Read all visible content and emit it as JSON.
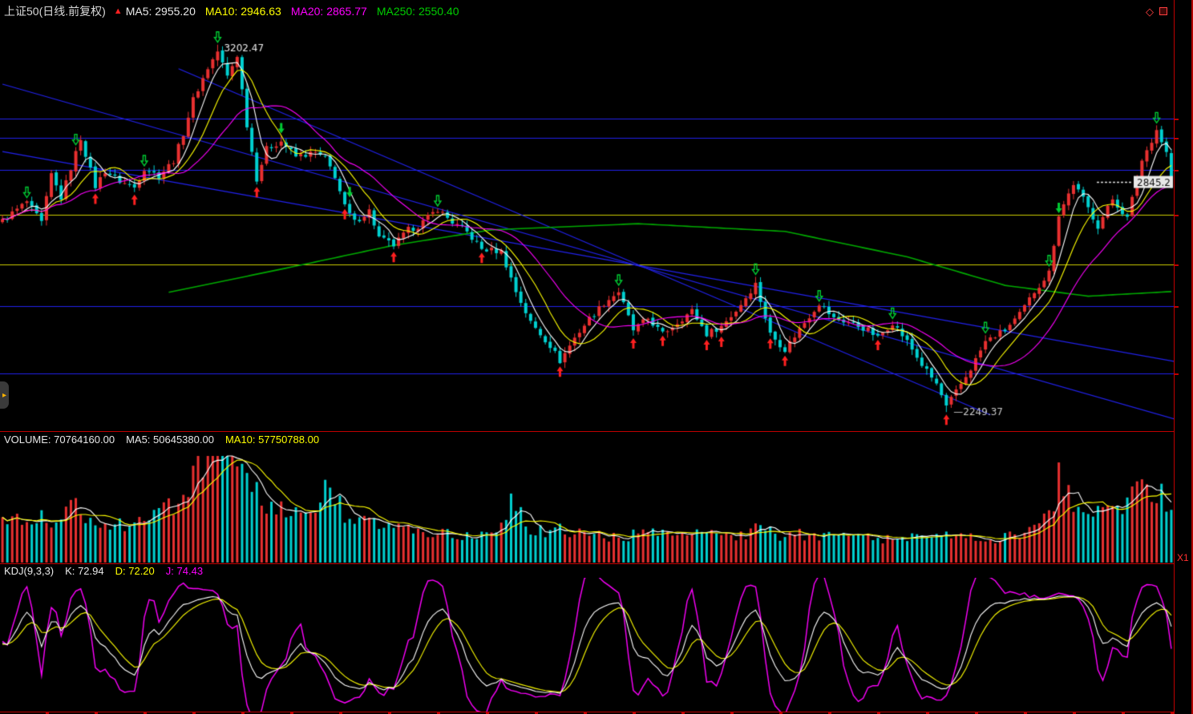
{
  "header": {
    "title": "上证50(日线.前复权)",
    "signal_icon": "up-arrow",
    "indicators": [
      {
        "label": "MA5:",
        "value": "2955.20",
        "color": "#e8e8e8"
      },
      {
        "label": "MA10:",
        "value": "2946.63",
        "color": "#ffff00"
      },
      {
        "label": "MA20:",
        "value": "2865.77",
        "color": "#ff00ff"
      },
      {
        "label": "MA250:",
        "value": "2550.40",
        "color": "#00cc00"
      }
    ]
  },
  "volume_header": {
    "items": [
      {
        "label": "VOLUME:",
        "value": "70764160.00",
        "color": "#e8e8e8"
      },
      {
        "label": "MA5:",
        "value": "50645380.00",
        "color": "#e8e8e8"
      },
      {
        "label": "MA10:",
        "value": "57750788.00",
        "color": "#ffff00"
      }
    ]
  },
  "kdj_header": {
    "name": "KDJ(9,3,3)",
    "items": [
      {
        "label": "K:",
        "value": "72.94",
        "color": "#e8e8e8"
      },
      {
        "label": "D:",
        "value": "72.20",
        "color": "#ffff00"
      },
      {
        "label": "J:",
        "value": "74.43",
        "color": "#ff00ff"
      }
    ]
  },
  "right_axis": {
    "zoom_label": "X1"
  },
  "colors": {
    "background": "#000000",
    "up": "#e83030",
    "down": "#00d0d0",
    "ma5": "#ffffff",
    "ma10": "#ffff00",
    "ma20": "#ff00ff",
    "ma250": "#00aa00",
    "grid_blue": "#2222ee",
    "grid_yellow": "#cccc00",
    "panel_border": "#c00000",
    "signal_buy": "#ff2020",
    "signal_sell": "#00cc33"
  },
  "chart_data": [
    {
      "type": "candlestick",
      "title": "上证50 日线 前复权",
      "ylim": [
        2200,
        3260
      ],
      "n": 240,
      "close_waypoints": [
        [
          0,
          2745
        ],
        [
          5,
          2795
        ],
        [
          8,
          2740
        ],
        [
          10,
          2865
        ],
        [
          12,
          2805
        ],
        [
          16,
          2960
        ],
        [
          19,
          2835
        ],
        [
          21,
          2875
        ],
        [
          24,
          2848
        ],
        [
          27,
          2832
        ],
        [
          29,
          2882
        ],
        [
          32,
          2862
        ],
        [
          35,
          2902
        ],
        [
          37,
          2972
        ],
        [
          39,
          3060
        ],
        [
          42,
          3142
        ],
        [
          44,
          3185
        ],
        [
          46,
          3120
        ],
        [
          48,
          3175
        ],
        [
          50,
          2995
        ],
        [
          52,
          2855
        ],
        [
          54,
          2932
        ],
        [
          57,
          2952
        ],
        [
          60,
          2912
        ],
        [
          64,
          2922
        ],
        [
          66,
          2906
        ],
        [
          68,
          2862
        ],
        [
          70,
          2782
        ],
        [
          72,
          2742
        ],
        [
          75,
          2772
        ],
        [
          77,
          2702
        ],
        [
          80,
          2682
        ],
        [
          83,
          2722
        ],
        [
          85,
          2732
        ],
        [
          89,
          2776
        ],
        [
          92,
          2742
        ],
        [
          95,
          2716
        ],
        [
          98,
          2672
        ],
        [
          102,
          2666
        ],
        [
          105,
          2562
        ],
        [
          108,
          2482
        ],
        [
          112,
          2422
        ],
        [
          114,
          2382
        ],
        [
          117,
          2442
        ],
        [
          120,
          2492
        ],
        [
          123,
          2532
        ],
        [
          126,
          2562
        ],
        [
          129,
          2462
        ],
        [
          132,
          2492
        ],
        [
          135,
          2452
        ],
        [
          138,
          2482
        ],
        [
          141,
          2512
        ],
        [
          144,
          2452
        ],
        [
          147,
          2472
        ],
        [
          150,
          2512
        ],
        [
          154,
          2582
        ],
        [
          157,
          2452
        ],
        [
          160,
          2412
        ],
        [
          164,
          2482
        ],
        [
          167,
          2532
        ],
        [
          170,
          2492
        ],
        [
          173,
          2482
        ],
        [
          177,
          2462
        ],
        [
          179,
          2442
        ],
        [
          182,
          2482
        ],
        [
          185,
          2432
        ],
        [
          188,
          2372
        ],
        [
          191,
          2322
        ],
        [
          193,
          2262
        ],
        [
          195,
          2302
        ],
        [
          198,
          2362
        ],
        [
          201,
          2432
        ],
        [
          205,
          2462
        ],
        [
          208,
          2502
        ],
        [
          211,
          2562
        ],
        [
          214,
          2612
        ],
        [
          216,
          2762
        ],
        [
          219,
          2842
        ],
        [
          221,
          2802
        ],
        [
          224,
          2732
        ],
        [
          227,
          2802
        ],
        [
          230,
          2752
        ],
        [
          233,
          2902
        ],
        [
          236,
          2982
        ],
        [
          238,
          2922
        ],
        [
          239,
          2845
        ]
      ],
      "high_label": {
        "index": 44,
        "price": 3202.47
      },
      "low_label": {
        "index": 193,
        "price": 2249.37
      },
      "last_close": 2845.2,
      "ma_lines": [
        {
          "period": 5,
          "color": "#ffffff"
        },
        {
          "period": 10,
          "color": "#ffff00"
        },
        {
          "period": 20,
          "color": "#ff00ff"
        },
        {
          "period": 250,
          "color": "#00aa00"
        }
      ],
      "ma250_waypoints": [
        [
          34,
          2560
        ],
        [
          60,
          2628
        ],
        [
          80,
          2682
        ],
        [
          100,
          2722
        ],
        [
          130,
          2738
        ],
        [
          160,
          2718
        ],
        [
          185,
          2652
        ],
        [
          205,
          2578
        ],
        [
          222,
          2550
        ],
        [
          239,
          2562
        ]
      ],
      "h_levels": [
        {
          "price": 3010,
          "color": "#2222ee"
        },
        {
          "price": 2961,
          "color": "#2222ee"
        },
        {
          "price": 2877,
          "color": "#2222ee"
        },
        {
          "price": 2761,
          "color": "#cccc00"
        },
        {
          "price": 2632,
          "color": "#cccc00"
        },
        {
          "price": 2524,
          "color": "#2222ee"
        },
        {
          "price": 2349,
          "color": "#2222ee"
        }
      ],
      "trendlines": [
        {
          "from": [
            0,
            3100
          ],
          "to": [
            240,
            2230
          ],
          "color": "#2222ee"
        },
        {
          "from": [
            36,
            3140
          ],
          "to": [
            202,
            2242
          ],
          "color": "#2222ee"
        },
        {
          "from": [
            0,
            2925
          ],
          "to": [
            240,
            2380
          ],
          "color": "#2222ee"
        }
      ],
      "buy_arrows": [
        19,
        27,
        52,
        70,
        80,
        98,
        114,
        129,
        135,
        144,
        147,
        157,
        160,
        179,
        193
      ],
      "sell_arrows_hollow": [
        5,
        15,
        29,
        44,
        89,
        126,
        154,
        167,
        182,
        201,
        214,
        236
      ],
      "sell_arrows_solid": [
        57,
        71,
        216
      ]
    },
    {
      "type": "bar",
      "name": "VOLUME",
      "current": 70764160.0,
      "ma5": 50645380.0,
      "ma10": 57750788.0,
      "ma_colors": {
        "ma5": "#ffffff",
        "ma10": "#ffff00"
      },
      "rel_waypoints": [
        [
          0,
          0.4
        ],
        [
          5,
          0.46
        ],
        [
          10,
          0.38
        ],
        [
          14,
          0.56
        ],
        [
          18,
          0.42
        ],
        [
          24,
          0.34
        ],
        [
          30,
          0.4
        ],
        [
          36,
          0.6
        ],
        [
          40,
          0.86
        ],
        [
          43,
          1.0
        ],
        [
          46,
          0.9
        ],
        [
          50,
          0.72
        ],
        [
          54,
          0.55
        ],
        [
          58,
          0.46
        ],
        [
          62,
          0.4
        ],
        [
          67,
          0.72
        ],
        [
          70,
          0.44
        ],
        [
          75,
          0.36
        ],
        [
          80,
          0.33
        ],
        [
          86,
          0.28
        ],
        [
          92,
          0.26
        ],
        [
          100,
          0.24
        ],
        [
          105,
          0.62
        ],
        [
          108,
          0.3
        ],
        [
          114,
          0.3
        ],
        [
          120,
          0.26
        ],
        [
          126,
          0.24
        ],
        [
          132,
          0.27
        ],
        [
          138,
          0.24
        ],
        [
          144,
          0.26
        ],
        [
          150,
          0.24
        ],
        [
          154,
          0.3
        ],
        [
          160,
          0.25
        ],
        [
          166,
          0.27
        ],
        [
          172,
          0.23
        ],
        [
          178,
          0.23
        ],
        [
          184,
          0.22
        ],
        [
          190,
          0.26
        ],
        [
          196,
          0.23
        ],
        [
          202,
          0.22
        ],
        [
          208,
          0.26
        ],
        [
          212,
          0.32
        ],
        [
          215,
          0.55
        ],
        [
          216,
          0.95
        ],
        [
          218,
          0.6
        ],
        [
          222,
          0.48
        ],
        [
          226,
          0.52
        ],
        [
          230,
          0.58
        ],
        [
          234,
          0.66
        ],
        [
          236,
          0.7
        ],
        [
          238,
          0.58
        ],
        [
          239,
          0.52
        ]
      ]
    },
    {
      "type": "line",
      "name": "KDJ",
      "params": [
        9,
        3,
        3
      ],
      "k": 72.94,
      "d": 72.2,
      "j": 74.43,
      "ylim": [
        -15,
        115
      ],
      "series_colors": {
        "k": "#ffffff",
        "d": "#ffff00",
        "j": "#ff00ff"
      }
    }
  ]
}
